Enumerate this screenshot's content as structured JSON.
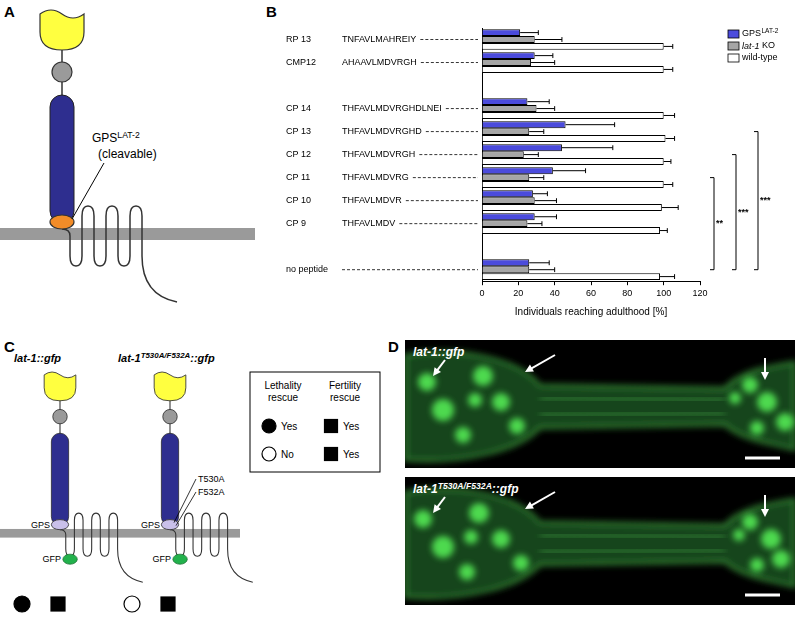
{
  "panel_a": {
    "label": "A",
    "gps_label": "GPS",
    "gps_label_superscript": "LAT-2",
    "gps_note": "(cleavable)"
  },
  "chart_data": {
    "label": "B",
    "type": "bar",
    "orientation": "horizontal",
    "categories": [
      "RP 13",
      "CMP12",
      null,
      "CP 14",
      "CP 13",
      "CP 12",
      "CP 11",
      "CP 10",
      "CP 9",
      null,
      "no peptide"
    ],
    "sequences": [
      "TNFAVLMAHREIY",
      "AHAAVLMDVRGH",
      null,
      "THFAVLMDVRGHDLNEI",
      "THFAVLMDVRGHD",
      "THFAVLMDVRGH",
      "THFAVLMDVRG",
      "THFAVLMDVR",
      "THFAVLMDV",
      null,
      null
    ],
    "series": [
      {
        "name": "GPS",
        "name_superscript": "LAT-2",
        "color": "#4b4bdc",
        "values": [
          21,
          29,
          null,
          25,
          46,
          44,
          39,
          28,
          29,
          null,
          26
        ],
        "errors": [
          10,
          10,
          null,
          12,
          27,
          28,
          18,
          8,
          12,
          null,
          11
        ]
      },
      {
        "name": "lat-1 KO",
        "color": "#a6a6a6",
        "values": [
          29,
          27,
          null,
          30,
          26,
          23,
          26,
          29,
          25,
          null,
          26
        ],
        "errors": [
          15,
          13,
          null,
          10,
          8,
          8,
          8,
          12,
          8,
          null,
          14
        ]
      },
      {
        "name": "wild-type",
        "color": "#ffffff",
        "values": [
          100,
          100,
          null,
          100,
          101,
          100,
          100,
          99,
          98,
          null,
          98
        ],
        "errors": [
          5,
          5,
          null,
          6,
          5,
          4,
          5,
          9,
          4,
          null,
          8
        ]
      }
    ],
    "xlabel": "Individuals reaching adulthood [%]",
    "xlim": [
      0,
      120
    ],
    "xticks": [
      0,
      20,
      40,
      60,
      80,
      100,
      120
    ],
    "grid": false,
    "legend": "upper right",
    "annotations": [
      {
        "from": "CP 11",
        "to": "no peptide",
        "label": "**"
      },
      {
        "from": "CP 12",
        "to": "no peptide",
        "label": "***"
      },
      {
        "from": "CP 13",
        "to": "no peptide",
        "label": "***"
      }
    ]
  },
  "panel_c": {
    "label": "C",
    "constructs": [
      {
        "name": "lat-1",
        "suffix": "::gfp",
        "domain_label": "GPS",
        "tag_label": "GFP",
        "lethality_rescue": true,
        "fertility_rescue": true
      },
      {
        "name": "lat-1",
        "name_superscript": "T530A/F532A",
        "suffix": "::gfp",
        "domain_label": "GPS",
        "tag_label": "GFP",
        "mutations": [
          "T530A",
          "F532A"
        ],
        "lethality_rescue": false,
        "fertility_rescue": true
      }
    ],
    "key": {
      "headers": [
        "Lethality rescue",
        "Fertility rescue"
      ],
      "rows": [
        [
          {
            "text": "Yes",
            "rescue": true
          },
          {
            "text": "Yes",
            "rescue": true
          }
        ],
        [
          {
            "text": "No",
            "rescue": false
          },
          {
            "text": "Yes",
            "rescue": true
          }
        ]
      ]
    }
  },
  "panel_d": {
    "label": "D",
    "images": [
      {
        "name": "lat-1",
        "suffix": "::gfp"
      },
      {
        "name": "lat-1",
        "name_superscript": "T530A/F532A",
        "suffix": "::gfp"
      }
    ]
  }
}
